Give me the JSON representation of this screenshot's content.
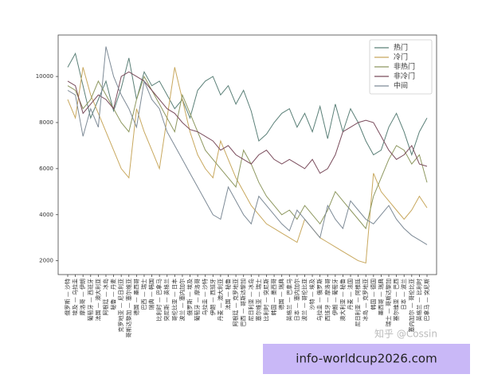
{
  "chart_data": {
    "type": "line",
    "categories": [
      "俄罗斯 — 沙特",
      "埃及 — 乌拉圭",
      "摩洛哥 — 伊朗",
      "葡萄牙 — 西班牙",
      "法国 — 澳大利亚",
      "阿根廷 — 冰岛",
      "秘鲁 — 丹麦",
      "克罗地亚 — 尼日利亚",
      "哥斯达黎加 — 塞尔维亚",
      "德国 — 墨西哥",
      "巴西 — 瑞士",
      "瑞典 — 韩国",
      "比利时 — 巴拿马",
      "突尼斯 — 英格兰",
      "哥伦比亚 — 日本",
      "波兰 — 塞内加尔",
      "俄罗斯 — 埃及",
      "葡萄牙 — 摩洛哥",
      "乌拉圭 — 沙特",
      "伊朗 — 西班牙",
      "丹麦 — 澳大利亚",
      "法国 — 秘鲁",
      "阿根廷 — 克罗地亚",
      "巴西 — 哥斯达黎加",
      "尼日利亚 — 冰岛",
      "塞尔维亚 — 瑞士",
      "比利时 — 突尼斯",
      "韩国 — 墨西哥",
      "德国 — 瑞典",
      "英格兰 — 巴拿马",
      "日本 — 塞内加尔",
      "波兰 — 哥伦比亚",
      "沙特 — 埃及",
      "乌拉圭 — 俄罗斯",
      "西班牙 — 摩洛哥",
      "伊朗 — 葡萄牙",
      "澳大利亚 — 秘鲁",
      "丹麦 — 法国",
      "尼日利亚 — 阿根廷",
      "冰岛 — 克罗地亚",
      "韩国 — 德国",
      "墨西哥 — 瑞典",
      "瑞士 — 哥斯达黎加",
      "塞尔维亚 — 巴西",
      "日本 — 波兰",
      "塞内加尔 — 哥伦比亚",
      "英格兰 — 比利时",
      "巴拿马 — 突尼斯"
    ],
    "series": [
      {
        "name": "热门",
        "color": "#5b8078",
        "values": [
          10400,
          11000,
          9600,
          8200,
          9000,
          9800,
          8500,
          9500,
          10800,
          9000,
          10200,
          9600,
          9800,
          9200,
          8600,
          9000,
          8200,
          9400,
          9800,
          10000,
          9200,
          9600,
          8800,
          9400,
          8500,
          7200,
          7500,
          8000,
          8400,
          8600,
          7800,
          8400,
          7600,
          8700,
          7300,
          8800,
          7600,
          8600,
          8000,
          7200,
          6600,
          6800,
          7800,
          8400,
          7600,
          6600,
          7600,
          8200
        ]
      },
      {
        "name": "冷门",
        "color": "#c8a85e",
        "values": [
          9000,
          8200,
          10400,
          9200,
          8400,
          7600,
          6800,
          6000,
          5600,
          8600,
          7600,
          6800,
          6000,
          8200,
          10400,
          9000,
          7600,
          6600,
          6000,
          5600,
          7200,
          6400,
          5600,
          5000,
          4400,
          4000,
          3600,
          3400,
          3200,
          3000,
          2800,
          3800,
          3400,
          3000,
          2800,
          2600,
          2400,
          2200,
          2000,
          1900,
          5800,
          5000,
          4600,
          4200,
          3800,
          4200,
          4800,
          4300
        ]
      },
      {
        "name": "非热门",
        "color": "#8e9860",
        "values": [
          9600,
          9400,
          8600,
          9000,
          9800,
          9200,
          8600,
          8000,
          7600,
          9000,
          10000,
          9400,
          8800,
          8200,
          7600,
          9200,
          8400,
          7600,
          6800,
          6400,
          6000,
          5600,
          5200,
          6800,
          6200,
          5400,
          4800,
          4400,
          4000,
          4200,
          3800,
          4400,
          4000,
          3600,
          4200,
          5000,
          4600,
          4200,
          3800,
          3400,
          4800,
          5600,
          6400,
          7000,
          6800,
          6200,
          6600,
          5400
        ]
      },
      {
        "name": "非冷门",
        "color": "#7a4c5c",
        "values": [
          9800,
          9600,
          8400,
          8800,
          9200,
          9000,
          8600,
          10000,
          10200,
          10000,
          9800,
          9400,
          9000,
          8600,
          8400,
          8000,
          7700,
          7600,
          7400,
          7200,
          6800,
          7000,
          6600,
          6400,
          6200,
          6600,
          6800,
          6400,
          6200,
          6400,
          6200,
          6000,
          6400,
          5800,
          6000,
          6600,
          7600,
          7800,
          8000,
          8100,
          8000,
          7400,
          6800,
          6400,
          6600,
          7000,
          6200,
          6100
        ]
      },
      {
        "name": "中间",
        "color": "#7d8a96",
        "values": [
          9400,
          9200,
          7400,
          8600,
          7800,
          11300,
          10000,
          9200,
          8600,
          7800,
          9800,
          9000,
          8600,
          7600,
          7000,
          6400,
          5800,
          5200,
          4600,
          4000,
          3800,
          5200,
          4600,
          4000,
          3600,
          4800,
          4400,
          4000,
          3600,
          3300,
          4200,
          3800,
          3400,
          3000,
          4400,
          3800,
          3400,
          4600,
          4200,
          3800,
          3600,
          4000,
          4400,
          3800,
          3400,
          3100,
          2900,
          2700
        ]
      }
    ],
    "ylim": [
      1400,
      11800
    ],
    "yticks": [
      2000,
      4000,
      6000,
      8000,
      10000
    ],
    "grid": false,
    "legend": "upper right",
    "watermark": "知乎 @Cossin",
    "banner": "info-worldcup2026.com"
  }
}
